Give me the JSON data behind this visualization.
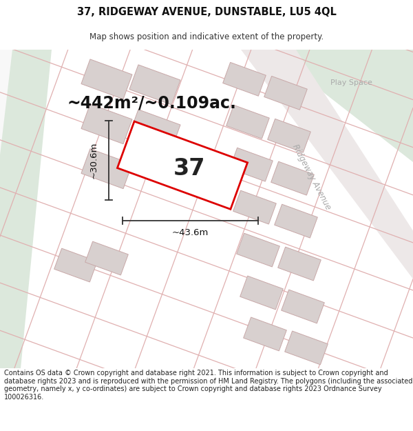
{
  "title_line1": "37, RIDGEWAY AVENUE, DUNSTABLE, LU5 4QL",
  "title_line2": "Map shows position and indicative extent of the property.",
  "footer_text": "Contains OS data © Crown copyright and database right 2021. This information is subject to Crown copyright and database rights 2023 and is reproduced with the permission of HM Land Registry. The polygons (including the associated geometry, namely x, y co-ordinates) are subject to Crown copyright and database rights 2023 Ordnance Survey 100026316.",
  "area_label": "~442m²/~0.109ac.",
  "width_label": "~43.6m",
  "height_label": "~30.6m",
  "plot_number": "37",
  "road_label": "Ridgeway Avenue",
  "play_space_label": "Play Space",
  "map_bg": "#f2eded",
  "green_color": "#dce8dc",
  "plot_edge": "#dd0000",
  "building_fill": "#d8d0cf",
  "building_edge": "#c8a8a8",
  "grid_line": "#e0b0b0",
  "dim_color": "#333333",
  "road_label_color": "#aaaaaa",
  "title_fs": 10.5,
  "subtitle_fs": 8.5,
  "footer_fs": 7.0,
  "area_fs": 17,
  "dim_fs": 9.5,
  "num_fs": 24,
  "road_label_fs": 8.5,
  "play_fs": 8
}
